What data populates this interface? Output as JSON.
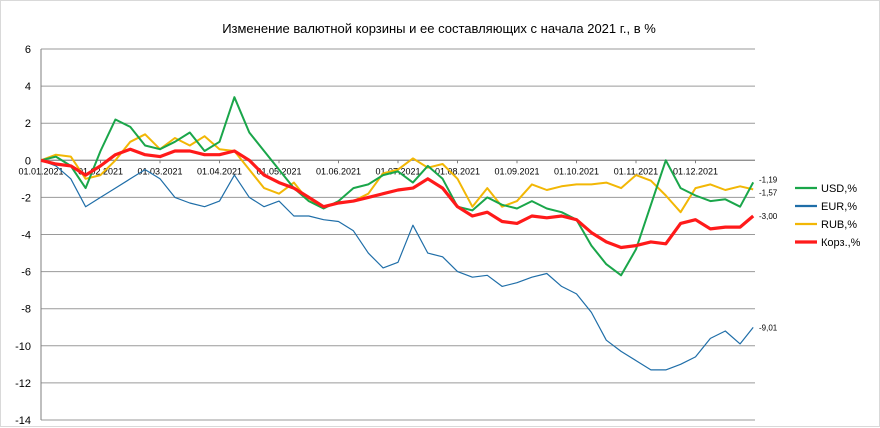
{
  "chart_data": {
    "type": "line",
    "title": "Изменение валютной корзины и ее составляющих с начала 2021 г., в %",
    "xlabel": "",
    "ylabel": "",
    "ylim": [
      -14,
      6
    ],
    "yticks": [
      "6",
      "4",
      "2",
      "0",
      "-2",
      "-4",
      "-6",
      "-8",
      "-10",
      "-12",
      "-14"
    ],
    "yticks_values": [
      6,
      4,
      2,
      0,
      -2,
      -4,
      -6,
      -8,
      -10,
      -12,
      -14
    ],
    "x_tick_labels": [
      "01.01.2021",
      "01.02.2021",
      "01.03.2021",
      "01.04.2021",
      "01.05.2021",
      "01.06.2021",
      "01.07.2021",
      "01.08.2021",
      "01.09.2021",
      "01.10.2021",
      "01.11.2021",
      "01.12.2021"
    ],
    "x_tick_months": [
      0,
      1,
      2,
      3,
      4,
      5,
      6,
      7,
      8,
      9,
      10,
      11
    ],
    "xlim_months": [
      0,
      12.0
    ],
    "grid": "horizontal",
    "legend_position": "right",
    "series": [
      {
        "name": "USD,%",
        "color": "#1aa64a",
        "end_label": "-1,19",
        "x": [
          0,
          0.25,
          0.5,
          0.75,
          1.0,
          1.25,
          1.5,
          1.75,
          2.0,
          2.25,
          2.5,
          2.75,
          3.0,
          3.25,
          3.5,
          3.75,
          4.0,
          4.25,
          4.5,
          4.75,
          5.0,
          5.25,
          5.5,
          5.75,
          6.0,
          6.25,
          6.5,
          6.75,
          7.0,
          7.25,
          7.5,
          7.75,
          8.0,
          8.25,
          8.5,
          8.75,
          9.0,
          9.25,
          9.5,
          9.75,
          10.0,
          10.25,
          10.5,
          10.75,
          11.0,
          11.25,
          11.5,
          11.75,
          11.97
        ],
        "values": [
          0,
          0.2,
          -0.3,
          -1.5,
          0.5,
          2.2,
          1.8,
          0.8,
          0.6,
          1.0,
          1.5,
          0.5,
          1.0,
          3.4,
          1.5,
          0.5,
          -0.5,
          -1.5,
          -2.2,
          -2.6,
          -2.2,
          -1.5,
          -1.3,
          -0.8,
          -0.6,
          -1.2,
          -0.3,
          -1.0,
          -2.5,
          -2.7,
          -2.0,
          -2.4,
          -2.6,
          -2.2,
          -2.6,
          -2.8,
          -3.2,
          -4.6,
          -5.6,
          -6.2,
          -4.8,
          -2.4,
          0.0,
          -1.5,
          -1.9,
          -2.2,
          -2.1,
          -2.5,
          -1.19
        ]
      },
      {
        "name": "EUR,%",
        "color": "#1f6ea8",
        "end_label": "-9,01",
        "x": [
          0,
          0.25,
          0.5,
          0.75,
          1.0,
          1.25,
          1.5,
          1.75,
          2.0,
          2.25,
          2.5,
          2.75,
          3.0,
          3.25,
          3.5,
          3.75,
          4.0,
          4.25,
          4.5,
          4.75,
          5.0,
          5.25,
          5.5,
          5.75,
          6.0,
          6.25,
          6.5,
          6.75,
          7.0,
          7.25,
          7.5,
          7.75,
          8.0,
          8.25,
          8.5,
          8.75,
          9.0,
          9.25,
          9.5,
          9.75,
          10.0,
          10.25,
          10.5,
          10.75,
          11.0,
          11.25,
          11.5,
          11.75,
          11.97
        ],
        "values": [
          0,
          -0.3,
          -1.0,
          -2.5,
          -2.0,
          -1.5,
          -1.0,
          -0.5,
          -1.0,
          -2.0,
          -2.3,
          -2.5,
          -2.2,
          -0.8,
          -2.0,
          -2.5,
          -2.2,
          -3.0,
          -3.0,
          -3.2,
          -3.3,
          -3.8,
          -5.0,
          -5.8,
          -5.5,
          -3.5,
          -5.0,
          -5.2,
          -6.0,
          -6.3,
          -6.2,
          -6.8,
          -6.6,
          -6.3,
          -6.1,
          -6.8,
          -7.2,
          -8.2,
          -9.7,
          -10.3,
          -10.8,
          -11.3,
          -11.3,
          -11.0,
          -10.6,
          -9.6,
          -9.2,
          -9.9,
          -9.01
        ]
      },
      {
        "name": "RUB,%",
        "color": "#f2b705",
        "end_label": "-1,57",
        "x": [
          0,
          0.25,
          0.5,
          0.75,
          1.0,
          1.25,
          1.5,
          1.75,
          2.0,
          2.25,
          2.5,
          2.75,
          3.0,
          3.25,
          3.5,
          3.75,
          4.0,
          4.25,
          4.5,
          4.75,
          5.0,
          5.25,
          5.5,
          5.75,
          6.0,
          6.25,
          6.5,
          6.75,
          7.0,
          7.25,
          7.5,
          7.75,
          8.0,
          8.25,
          8.5,
          8.75,
          9.0,
          9.25,
          9.5,
          9.75,
          10.0,
          10.25,
          10.5,
          10.75,
          11.0,
          11.25,
          11.5,
          11.75,
          11.97
        ],
        "values": [
          0,
          0.3,
          0.2,
          -1.0,
          -0.8,
          0.0,
          1.0,
          1.4,
          0.6,
          1.2,
          0.8,
          1.3,
          0.6,
          0.5,
          -0.5,
          -1.5,
          -1.8,
          -1.2,
          -2.2,
          -2.5,
          -2.3,
          -2.2,
          -1.8,
          -0.7,
          -0.5,
          0.1,
          -0.4,
          -0.2,
          -1.0,
          -2.5,
          -1.5,
          -2.5,
          -2.2,
          -1.3,
          -1.6,
          -1.4,
          -1.3,
          -1.3,
          -1.2,
          -1.5,
          -0.8,
          -1.1,
          -1.9,
          -2.8,
          -1.5,
          -1.3,
          -1.6,
          -1.4,
          -1.57
        ]
      },
      {
        "name": "Корз.,%",
        "color": "#ff1a1a",
        "end_label": "-3,00",
        "x": [
          0,
          0.25,
          0.5,
          0.75,
          1.0,
          1.25,
          1.5,
          1.75,
          2.0,
          2.25,
          2.5,
          2.75,
          3.0,
          3.25,
          3.5,
          3.75,
          4.0,
          4.25,
          4.5,
          4.75,
          5.0,
          5.25,
          5.5,
          5.75,
          6.0,
          6.25,
          6.5,
          6.75,
          7.0,
          7.25,
          7.5,
          7.75,
          8.0,
          8.25,
          8.5,
          8.75,
          9.0,
          9.25,
          9.5,
          9.75,
          10.0,
          10.25,
          10.5,
          10.75,
          11.0,
          11.25,
          11.5,
          11.75,
          11.97
        ],
        "values": [
          0,
          -0.2,
          -0.3,
          -0.8,
          -0.3,
          0.3,
          0.6,
          0.3,
          0.2,
          0.5,
          0.5,
          0.3,
          0.3,
          0.5,
          0.0,
          -0.8,
          -1.2,
          -1.5,
          -2.0,
          -2.5,
          -2.3,
          -2.2,
          -2.0,
          -1.8,
          -1.6,
          -1.5,
          -1.0,
          -1.5,
          -2.5,
          -3.0,
          -2.8,
          -3.3,
          -3.4,
          -3.0,
          -3.1,
          -3.0,
          -3.2,
          -3.9,
          -4.4,
          -4.7,
          -4.6,
          -4.4,
          -4.5,
          -3.4,
          -3.2,
          -3.7,
          -3.6,
          -3.6,
          -3.0
        ]
      }
    ]
  }
}
